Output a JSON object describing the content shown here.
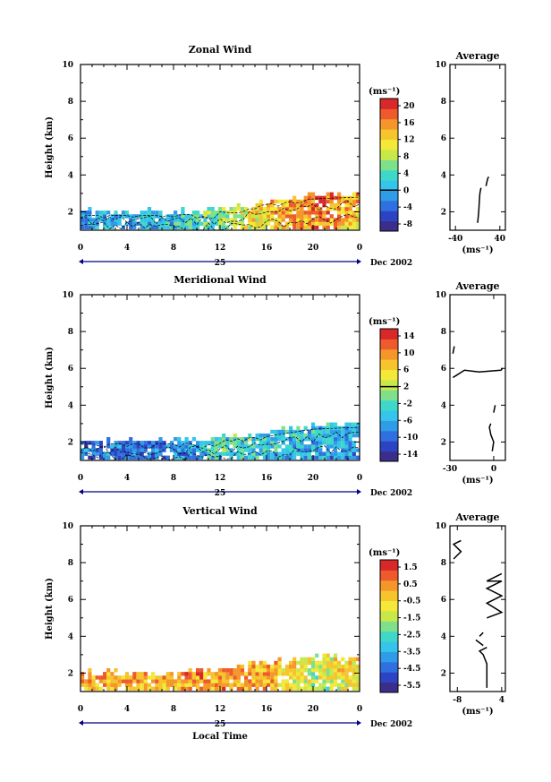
{
  "colors": {
    "axis": "#000000",
    "background": "#ffffff",
    "ribbon": "#000080"
  },
  "colormap": [
    "#3a2e8a",
    "#2c44c4",
    "#2f6fe0",
    "#2f9ce8",
    "#35c4ea",
    "#3fd8c8",
    "#7ee08a",
    "#c8e84a",
    "#f4e838",
    "#f6c42c",
    "#f5962a",
    "#ef5a2c",
    "#d8282a"
  ],
  "panels": [
    {
      "title": "Zonal Wind",
      "ylabel": "Height (km)",
      "yticks": [
        "2",
        "4",
        "6",
        "8",
        "10"
      ],
      "ylim": [
        1,
        10
      ],
      "xticks": [
        "0",
        "4",
        "8",
        "12",
        "16",
        "20",
        "0"
      ],
      "date_day": "25",
      "date_label": "Dec 2002",
      "colorbar": {
        "unit": "(ms⁻¹)",
        "ticks": [
          "20",
          "16",
          "12",
          "8",
          "4",
          "0",
          "-4",
          "-8"
        ],
        "contour": "0"
      },
      "avg_title": "Average",
      "avg_xticks": [
        "-40",
        "40"
      ],
      "avg_yticks": [
        "2",
        "4",
        "6",
        "8",
        "10"
      ],
      "avg_xlabel": "(ms⁻¹)"
    },
    {
      "title": "Meridional Wind",
      "ylabel": "Height (km)",
      "yticks": [
        "2",
        "4",
        "6",
        "8",
        "10"
      ],
      "ylim": [
        1,
        10
      ],
      "xticks": [
        "0",
        "4",
        "8",
        "12",
        "16",
        "20",
        "0"
      ],
      "date_day": "25",
      "date_label": "Dec 2002",
      "colorbar": {
        "unit": "(ms⁻¹)",
        "ticks": [
          "14",
          "10",
          "6",
          "2",
          "-2",
          "-6",
          "-10",
          "-14"
        ],
        "contour": "2"
      },
      "avg_title": "Average",
      "avg_xticks": [
        "-30",
        "0"
      ],
      "avg_yticks": [
        "2",
        "4",
        "6",
        "8",
        "10"
      ],
      "avg_xlabel": "(ms⁻¹)"
    },
    {
      "title": "Vertical Wind",
      "ylabel": "Height (km)",
      "yticks": [
        "2",
        "4",
        "6",
        "8",
        "10"
      ],
      "ylim": [
        1,
        10
      ],
      "xticks": [
        "0",
        "4",
        "8",
        "12",
        "16",
        "20",
        "0"
      ],
      "date_day": "25",
      "date_label": "Dec 2002",
      "xlabel": "Local Time",
      "colorbar": {
        "unit": "(ms⁻¹)",
        "ticks": [
          "1.5",
          "0.5",
          "-0.5",
          "-1.5",
          "-2.5",
          "-3.5",
          "-4.5",
          "-5.5"
        ]
      },
      "avg_title": "Average",
      "avg_xticks": [
        "-8",
        "4"
      ],
      "avg_yticks": [
        "2",
        "4",
        "6",
        "8",
        "10"
      ],
      "avg_xlabel": "(ms⁻¹)"
    }
  ],
  "chart_data": [
    {
      "type": "heatmap",
      "title": "Zonal Wind",
      "xlabel": "Local Time (25 Dec 2002)",
      "ylabel": "Height (km)",
      "xlim": [
        0,
        24
      ],
      "ylim": [
        1,
        10
      ],
      "color_range": [
        -8,
        22
      ],
      "coverage_top_km": [
        [
          0,
          1.9
        ],
        [
          8,
          1.9
        ],
        [
          12,
          2.1
        ],
        [
          16,
          2.5
        ],
        [
          20,
          2.8
        ],
        [
          24,
          2.9
        ]
      ],
      "value_trend_ms": [
        [
          0,
          1
        ],
        [
          8,
          3
        ],
        [
          12,
          8
        ],
        [
          16,
          13
        ],
        [
          20,
          17
        ],
        [
          24,
          13
        ]
      ]
    },
    {
      "type": "line",
      "title": "Average (Zonal Wind)",
      "xlabel": "(ms⁻¹)",
      "ylabel": "Height (km)",
      "xlim": [
        -50,
        50
      ],
      "ylim": [
        1,
        10
      ],
      "segments": [
        [
          [
            0,
            1.4
          ],
          [
            2,
            2.0
          ],
          [
            3,
            2.6
          ],
          [
            4,
            3.0
          ],
          [
            6,
            3.3
          ]
        ],
        [
          [
            15,
            3.4
          ],
          [
            18,
            3.8
          ],
          [
            20,
            3.9
          ]
        ]
      ]
    },
    {
      "type": "heatmap",
      "title": "Meridional Wind",
      "xlabel": "Local Time (25 Dec 2002)",
      "ylabel": "Height (km)",
      "xlim": [
        0,
        24
      ],
      "ylim": [
        1,
        10
      ],
      "color_range": [
        -16,
        16
      ],
      "coverage_top_km": [
        [
          0,
          2.0
        ],
        [
          8,
          2.0
        ],
        [
          12,
          2.2
        ],
        [
          16,
          2.4
        ],
        [
          20,
          2.8
        ],
        [
          24,
          2.9
        ]
      ],
      "value_trend_ms": [
        [
          0,
          -10
        ],
        [
          8,
          -8
        ],
        [
          12,
          -3
        ],
        [
          16,
          -4
        ],
        [
          20,
          -6
        ],
        [
          24,
          -7
        ]
      ]
    },
    {
      "type": "line",
      "title": "Average (Meridional Wind)",
      "xlabel": "(ms⁻¹)",
      "ylabel": "Height (km)",
      "xlim": [
        -30,
        8
      ],
      "ylim": [
        1,
        10
      ],
      "segments": [
        [
          [
            -1,
            1.5
          ],
          [
            0,
            2.0
          ],
          [
            -2,
            2.4
          ],
          [
            -3,
            2.8
          ],
          [
            -2,
            3.0
          ]
        ],
        [
          [
            0,
            3.6
          ],
          [
            1,
            4.0
          ]
        ],
        [
          [
            -28,
            5.5
          ],
          [
            -20,
            5.9
          ],
          [
            -10,
            5.8
          ],
          [
            5,
            5.9
          ],
          [
            6,
            6.0
          ]
        ],
        [
          [
            -28,
            6.8
          ],
          [
            -27,
            7.2
          ]
        ]
      ]
    },
    {
      "type": "heatmap",
      "title": "Vertical Wind",
      "xlabel": "Local Time (25 Dec 2002)",
      "ylabel": "Height (km)",
      "xlim": [
        0,
        24
      ],
      "ylim": [
        1,
        10
      ],
      "color_range": [
        -6.5,
        2.5
      ],
      "coverage_top_km": [
        [
          0,
          1.9
        ],
        [
          8,
          1.9
        ],
        [
          12,
          2.1
        ],
        [
          16,
          2.5
        ],
        [
          20,
          2.8
        ],
        [
          24,
          2.9
        ]
      ],
      "value_trend_ms": [
        [
          0,
          0.5
        ],
        [
          8,
          0.5
        ],
        [
          12,
          0.8
        ],
        [
          16,
          0.3
        ],
        [
          20,
          -1.5
        ],
        [
          24,
          -0.5
        ]
      ]
    },
    {
      "type": "line",
      "title": "Average (Vertical Wind)",
      "xlabel": "(ms⁻¹)",
      "ylabel": "Height (km)",
      "xlim": [
        -10,
        5
      ],
      "ylim": [
        1,
        10
      ],
      "segments": [
        [
          [
            0,
            1.2
          ],
          [
            0,
            2.5
          ],
          [
            -1,
            3.0
          ],
          [
            -2,
            3.2
          ],
          [
            0,
            3.4
          ]
        ],
        [
          [
            -1,
            3.5
          ],
          [
            -3,
            3.8
          ]
        ],
        [
          [
            -2,
            4.0
          ],
          [
            -1,
            4.2
          ]
        ],
        [
          [
            0,
            5.0
          ],
          [
            4,
            5.3
          ],
          [
            0,
            5.8
          ],
          [
            4,
            6.2
          ],
          [
            0,
            6.6
          ],
          [
            4,
            7.0
          ],
          [
            0,
            7.0
          ],
          [
            4,
            7.4
          ]
        ],
        [
          [
            -9,
            8.2
          ],
          [
            -7,
            8.6
          ],
          [
            -9,
            9.0
          ],
          [
            -7,
            9.2
          ]
        ]
      ]
    }
  ]
}
